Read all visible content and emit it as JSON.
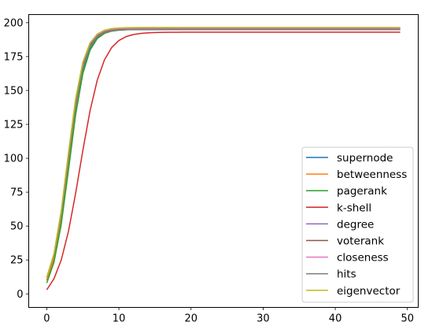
{
  "chart_data": {
    "type": "line",
    "title": "",
    "xlabel": "",
    "ylabel": "",
    "xlim": [
      -2.5,
      51.5
    ],
    "ylim": [
      -10,
      206
    ],
    "xticks": [
      0,
      10,
      20,
      30,
      40,
      50
    ],
    "yticks": [
      0,
      25,
      50,
      75,
      100,
      125,
      150,
      175,
      200
    ],
    "grid": false,
    "legend_position": "lower-right",
    "curve_model": "logistic rise over steps 0-49",
    "series": [
      {
        "name": "supernode",
        "color": "#1f77b4",
        "start": 10,
        "plateau": 195,
        "midpoint": 3.1,
        "rate": 0.88
      },
      {
        "name": "betweenness",
        "color": "#ff7f0e",
        "start": 10,
        "plateau": 196,
        "midpoint": 3.0,
        "rate": 0.88
      },
      {
        "name": "pagerank",
        "color": "#2ca02c",
        "start": 8,
        "plateau": 195,
        "midpoint": 3.1,
        "rate": 0.86
      },
      {
        "name": "k-shell",
        "color": "#d62728",
        "start": 3,
        "plateau": 193,
        "midpoint": 4.6,
        "rate": 0.64
      },
      {
        "name": "degree",
        "color": "#9467bd",
        "start": 12,
        "plateau": 195.5,
        "midpoint": 2.9,
        "rate": 0.88
      },
      {
        "name": "voterank",
        "color": "#8c564b",
        "start": 12,
        "plateau": 195.5,
        "midpoint": 2.9,
        "rate": 0.88
      },
      {
        "name": "closeness",
        "color": "#e377c2",
        "start": 12,
        "plateau": 196,
        "midpoint": 2.85,
        "rate": 0.89
      },
      {
        "name": "hits",
        "color": "#7f7f7f",
        "start": 12,
        "plateau": 195,
        "midpoint": 2.95,
        "rate": 0.88
      },
      {
        "name": "eigenvector",
        "color": "#bcbd22",
        "start": 12,
        "plateau": 196.5,
        "midpoint": 2.85,
        "rate": 0.89
      }
    ],
    "x_count": 50
  }
}
